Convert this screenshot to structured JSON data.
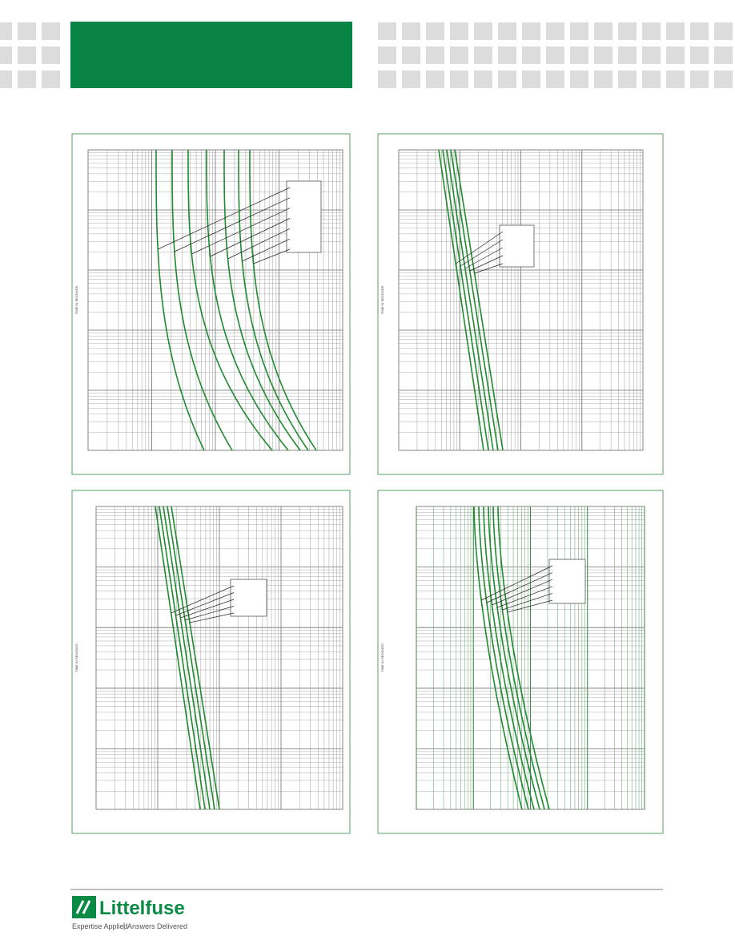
{
  "charts": [
    {
      "y_label": "TIME IN SECONDS"
    },
    {
      "y_label": "TIME IN SECONDS"
    },
    {
      "y_label": "TIME IN SECONDS"
    },
    {
      "y_label": "TIME IN SECONDS"
    }
  ],
  "footer": {
    "brand": "Littelfuse",
    "tagline_left": "Expertise Applied",
    "tagline_right": "Answers Delivered"
  }
}
